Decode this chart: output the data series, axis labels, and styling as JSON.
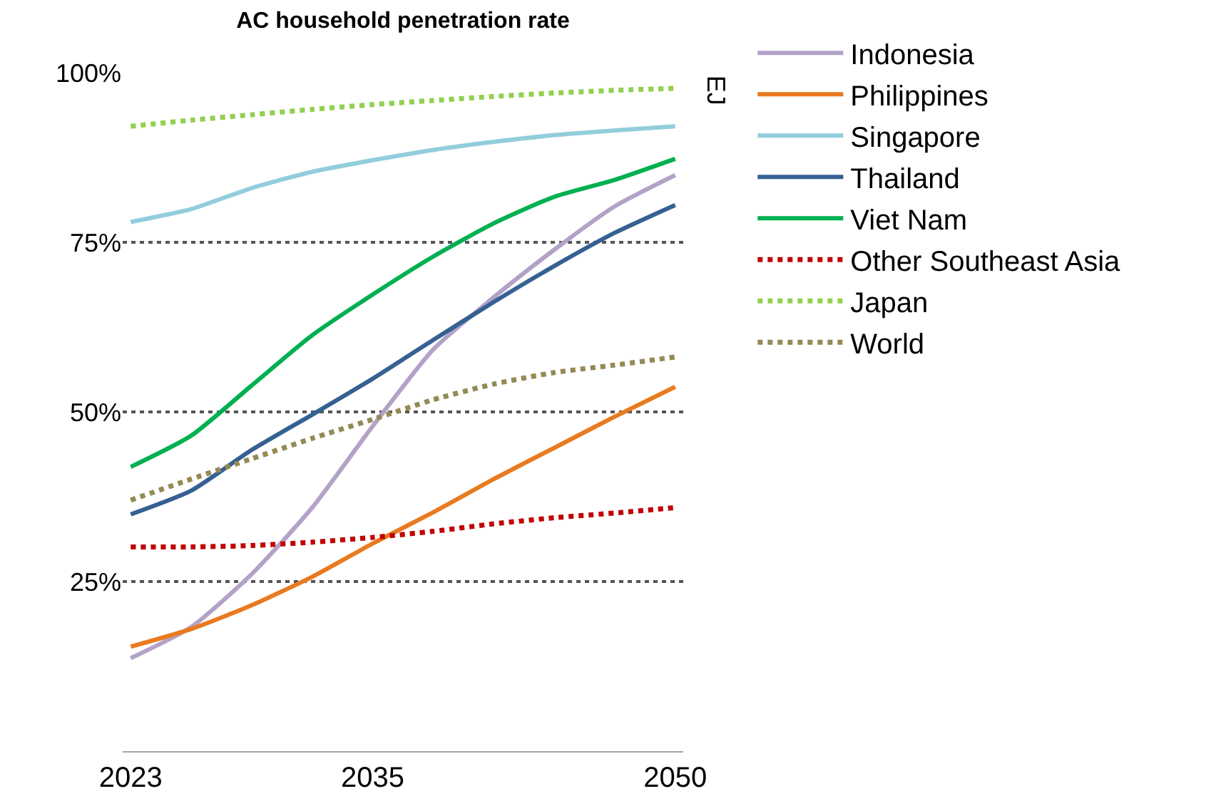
{
  "chart_data": {
    "type": "line",
    "title": "AC household penetration rate",
    "y2label": "EJ",
    "x": [
      2023,
      2026,
      2029,
      2032,
      2035,
      2038,
      2041,
      2044,
      2047,
      2050
    ],
    "xlim": [
      2022.6,
      2050.4
    ],
    "xticks": [
      2023,
      2035,
      2050
    ],
    "ylim": [
      0,
      100
    ],
    "yticks": [
      {
        "value": 25,
        "label": "25%"
      },
      {
        "value": 50,
        "label": "50%"
      },
      {
        "value": 75,
        "label": "75%"
      },
      {
        "value": 100,
        "label": "100%"
      }
    ],
    "grid": "y",
    "legend": "right",
    "marker": "none",
    "series": [
      {
        "name": "Indonesia",
        "color": "#b3a2c7",
        "line_style": "solid",
        "values": [
          13.7,
          18.3,
          26.1,
          35.9,
          47.9,
          59.2,
          66.9,
          73.9,
          80.3,
          84.9
        ]
      },
      {
        "name": "Philippines",
        "color": "#e97a1f",
        "line_style": "solid",
        "values": [
          15.4,
          18.0,
          21.5,
          25.7,
          30.6,
          35.2,
          40.1,
          44.7,
          49.3,
          53.7
        ]
      },
      {
        "name": "Singapore",
        "color": "#92cddc",
        "line_style": "solid",
        "values": [
          78.0,
          79.9,
          83.0,
          85.4,
          87.1,
          88.6,
          89.8,
          90.8,
          91.5,
          92.1
        ]
      },
      {
        "name": "Thailand",
        "color": "#366092",
        "line_style": "solid",
        "values": [
          34.9,
          38.4,
          44.4,
          49.6,
          54.9,
          60.6,
          66.2,
          71.5,
          76.4,
          80.5
        ]
      },
      {
        "name": "Viet Nam",
        "color": "#00b050",
        "line_style": "solid",
        "values": [
          41.9,
          46.5,
          53.9,
          61.3,
          67.3,
          72.9,
          77.8,
          81.7,
          84.2,
          87.3
        ]
      },
      {
        "name": "Other Southeast Asia",
        "color": "#c00000",
        "line_style": "dotted",
        "values": [
          30.1,
          30.1,
          30.3,
          30.8,
          31.5,
          32.4,
          33.5,
          34.4,
          35.1,
          35.9
        ]
      },
      {
        "name": "Japan",
        "color": "#92d050",
        "line_style": "dotted",
        "values": [
          92.1,
          93.0,
          93.8,
          94.6,
          95.3,
          95.9,
          96.5,
          97.0,
          97.4,
          97.7
        ]
      },
      {
        "name": "World",
        "color": "#948a54",
        "line_style": "dotted",
        "values": [
          37.0,
          40.1,
          43.1,
          46.1,
          48.9,
          51.8,
          54.1,
          55.8,
          56.9,
          58.1
        ]
      }
    ]
  }
}
